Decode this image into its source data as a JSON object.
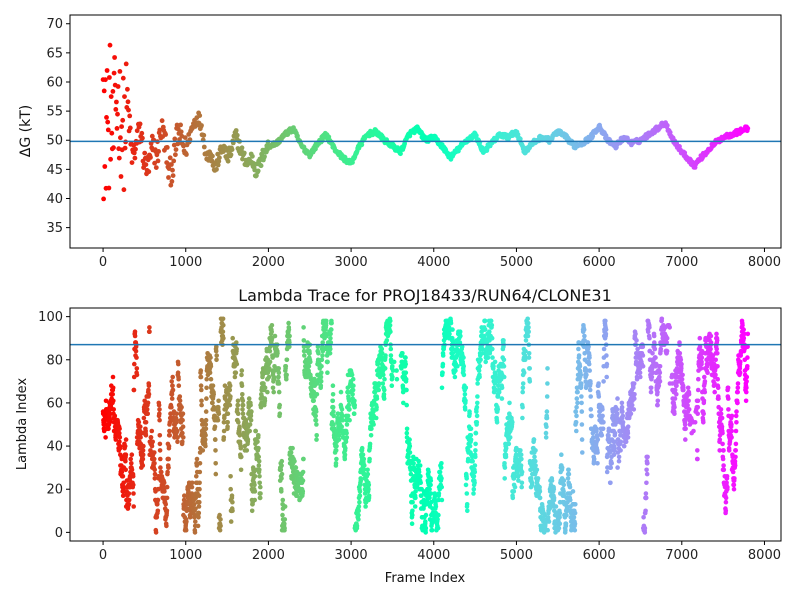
{
  "chart_data": [
    {
      "type": "scatter",
      "title": "",
      "xlabel": "",
      "ylabel": "ΔG (kT)",
      "xlim": [
        -400,
        8200
      ],
      "ylim": [
        31.5,
        71.5
      ],
      "xticks": [
        0,
        1000,
        2000,
        3000,
        4000,
        5000,
        6000,
        7000,
        8000
      ],
      "yticks": [
        35,
        40,
        45,
        50,
        55,
        60,
        65,
        70
      ],
      "colormap": "rainbow (red at frame 0 to violet at last frame)",
      "hline": 49.8,
      "hline_color": "#1f77b4",
      "frames": 7800,
      "series_points": [
        [
          0,
          70
        ],
        [
          5,
          40
        ],
        [
          10,
          64
        ],
        [
          15,
          56
        ],
        [
          20,
          38.5
        ],
        [
          25,
          60
        ],
        [
          30,
          47
        ],
        [
          40,
          52
        ],
        [
          50,
          62
        ],
        [
          60,
          44
        ],
        [
          80,
          58
        ],
        [
          100,
          53
        ],
        [
          120,
          49
        ],
        [
          150,
          57
        ],
        [
          200,
          55
        ],
        [
          250,
          51
        ],
        [
          300,
          56
        ],
        [
          350,
          47
        ],
        [
          400,
          49
        ],
        [
          450,
          52
        ],
        [
          500,
          46
        ],
        [
          550,
          45
        ],
        [
          600,
          49
        ],
        [
          650,
          47
        ],
        [
          700,
          52
        ],
        [
          750,
          50
        ],
        [
          800,
          44
        ],
        [
          850,
          46
        ],
        [
          900,
          51
        ],
        [
          950,
          50
        ],
        [
          1000,
          48
        ],
        [
          1050,
          51
        ],
        [
          1100,
          53
        ],
        [
          1150,
          54
        ],
        [
          1200,
          52
        ],
        [
          1250,
          47
        ],
        [
          1300,
          48
        ],
        [
          1350,
          45
        ],
        [
          1400,
          47
        ],
        [
          1450,
          49
        ],
        [
          1500,
          47
        ],
        [
          1550,
          48
        ],
        [
          1600,
          51
        ],
        [
          1650,
          49
        ],
        [
          1700,
          47
        ],
        [
          1750,
          46
        ],
        [
          1800,
          47
        ],
        [
          1850,
          44.5
        ],
        [
          1900,
          46
        ],
        [
          1950,
          48
        ],
        [
          2000,
          49
        ],
        [
          2100,
          49.5
        ],
        [
          2200,
          51
        ],
        [
          2300,
          52
        ],
        [
          2400,
          49
        ],
        [
          2500,
          47.5
        ],
        [
          2600,
          49.5
        ],
        [
          2700,
          51
        ],
        [
          2800,
          48.5
        ],
        [
          2900,
          47
        ],
        [
          3000,
          46
        ],
        [
          3100,
          49
        ],
        [
          3200,
          51
        ],
        [
          3300,
          51.5
        ],
        [
          3400,
          50
        ],
        [
          3500,
          49
        ],
        [
          3600,
          48
        ],
        [
          3700,
          51
        ],
        [
          3800,
          52
        ],
        [
          3900,
          50
        ],
        [
          4000,
          50.5
        ],
        [
          4100,
          49
        ],
        [
          4200,
          47
        ],
        [
          4300,
          48.5
        ],
        [
          4400,
          50
        ],
        [
          4500,
          51
        ],
        [
          4600,
          48
        ],
        [
          4700,
          49.5
        ],
        [
          4800,
          51
        ],
        [
          4900,
          50.5
        ],
        [
          5000,
          51.5
        ],
        [
          5100,
          48
        ],
        [
          5200,
          49.5
        ],
        [
          5300,
          50.5
        ],
        [
          5400,
          50
        ],
        [
          5500,
          51.5
        ],
        [
          5600,
          50.5
        ],
        [
          5700,
          49
        ],
        [
          5800,
          49.5
        ],
        [
          5900,
          50.5
        ],
        [
          6000,
          52.5
        ],
        [
          6100,
          50
        ],
        [
          6200,
          49
        ],
        [
          6300,
          50.5
        ],
        [
          6400,
          49.5
        ],
        [
          6500,
          50
        ],
        [
          6600,
          51
        ],
        [
          6700,
          52
        ],
        [
          6800,
          53
        ],
        [
          6900,
          50
        ],
        [
          7000,
          48
        ],
        [
          7100,
          46.5
        ],
        [
          7150,
          45.5
        ],
        [
          7200,
          46.5
        ],
        [
          7300,
          48
        ],
        [
          7400,
          49.5
        ],
        [
          7500,
          50.5
        ],
        [
          7600,
          51
        ],
        [
          7700,
          51.5
        ],
        [
          7780,
          52
        ]
      ]
    },
    {
      "type": "scatter",
      "title": "Lambda Trace for PROJ18433/RUN64/CLONE31",
      "xlabel": "Frame Index",
      "ylabel": "Lambda Index",
      "xlim": [
        -400,
        8200
      ],
      "ylim": [
        -4,
        104
      ],
      "xticks": [
        0,
        1000,
        2000,
        3000,
        4000,
        5000,
        6000,
        7000,
        8000
      ],
      "yticks": [
        0,
        20,
        40,
        60,
        80,
        100
      ],
      "colormap": "rainbow (red at frame 0 to violet at last frame)",
      "hline": 87,
      "hline_color": "#1f77b4",
      "frames": 7800,
      "lambda_range": [
        0,
        99
      ],
      "sparse_regions": [
        [
          3500,
          3600
        ],
        [
          6820,
          6880
        ],
        [
          7100,
          7180
        ]
      ]
    }
  ]
}
